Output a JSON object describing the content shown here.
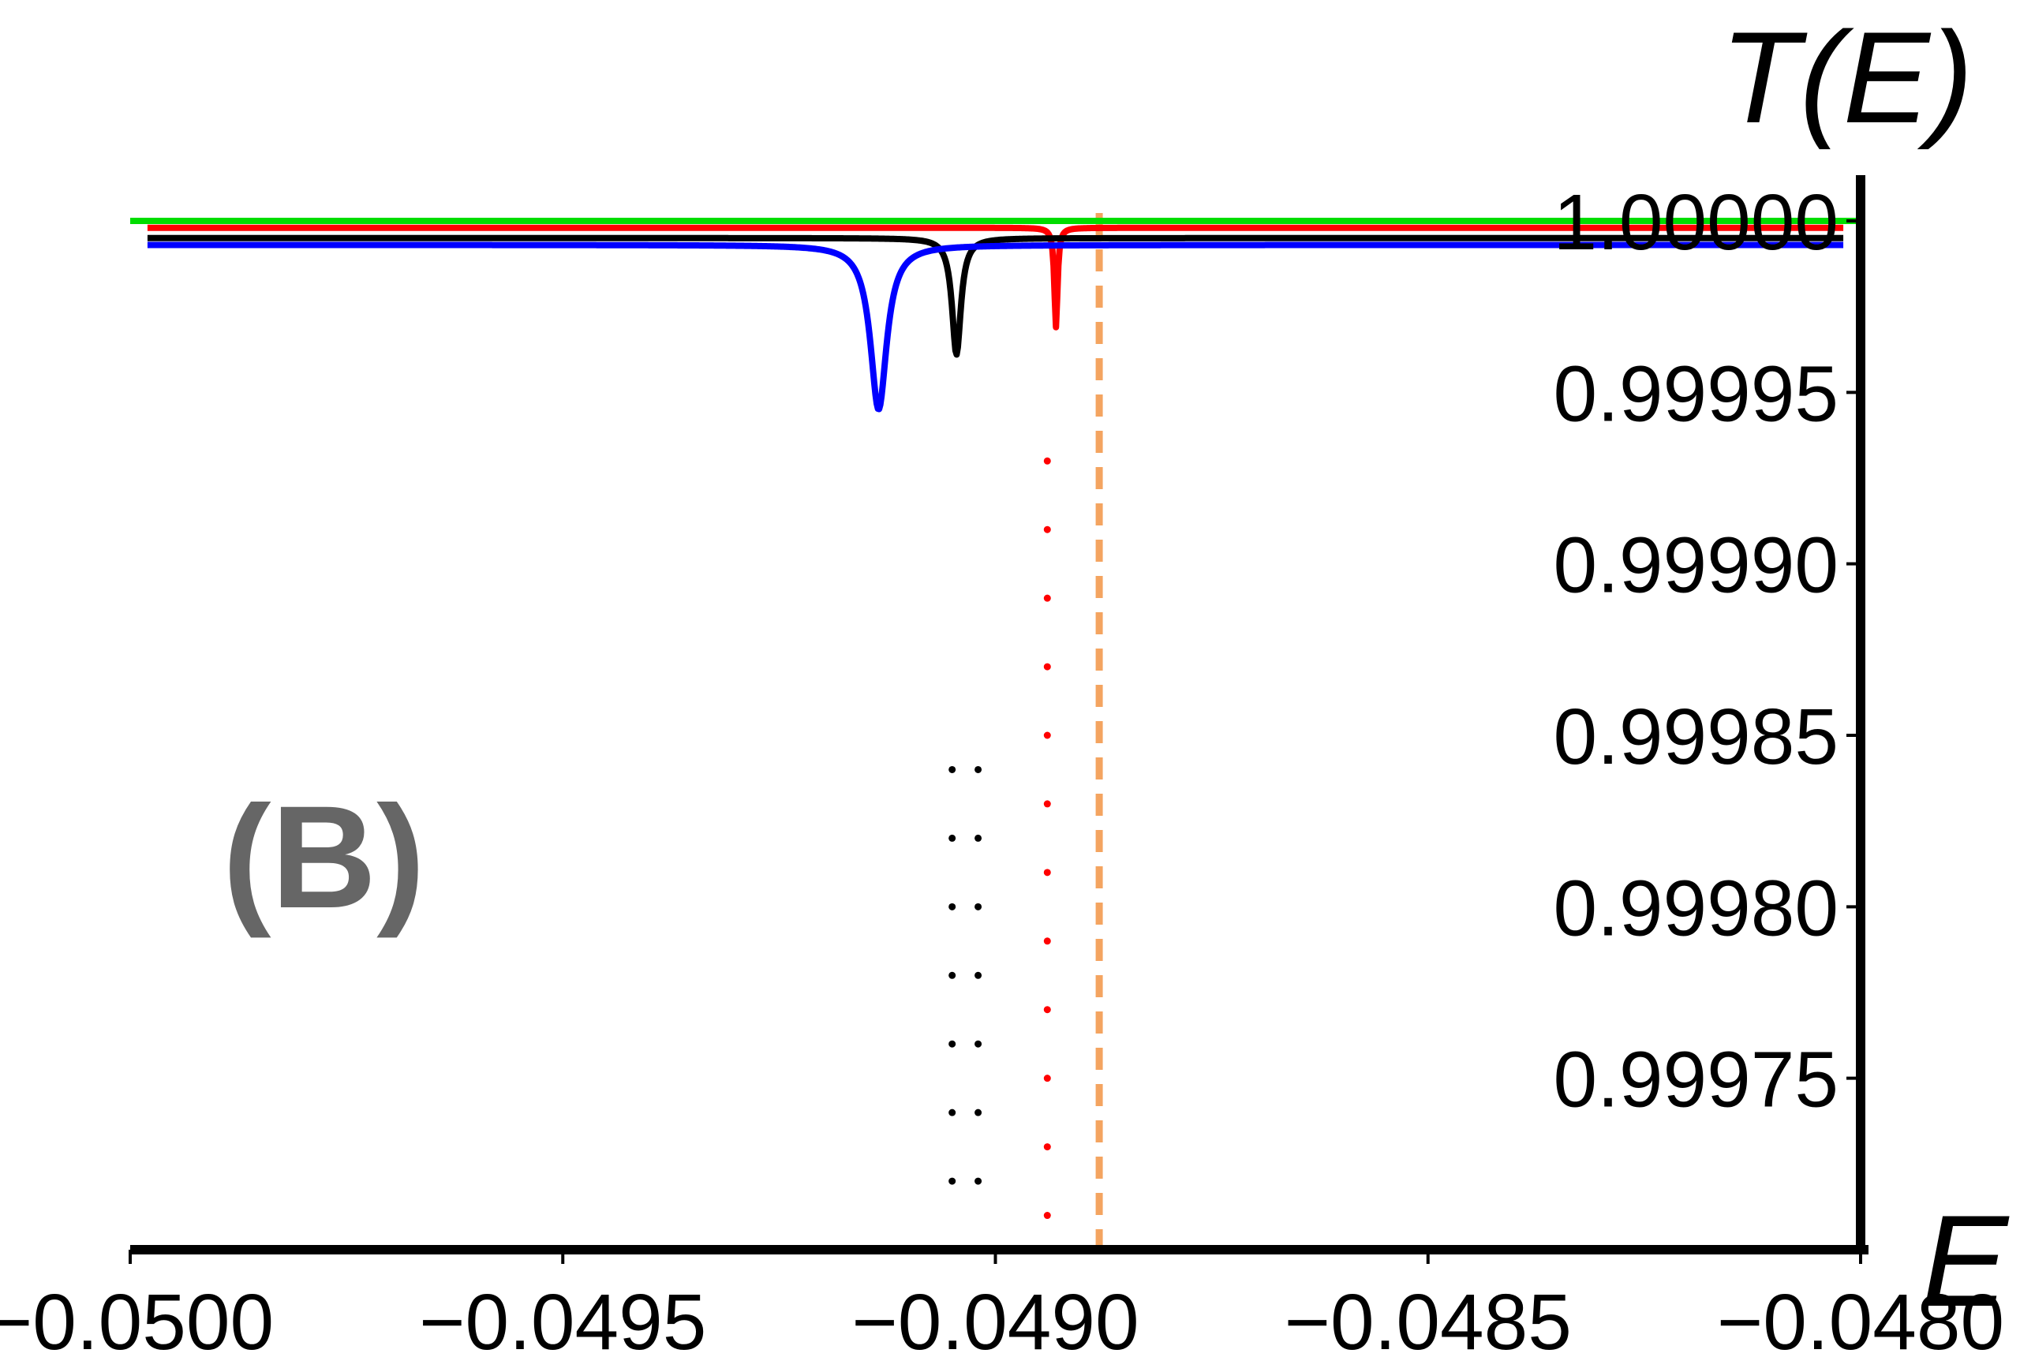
{
  "chart_data": {
    "type": "line",
    "panel_label": "(B)",
    "xlabel": "E",
    "ylabel": "T(E)",
    "xlim": [
      -0.05,
      -0.048
    ],
    "ylim": [
      0.9997,
      1.0
    ],
    "xticks": [
      "−0.0500",
      "−0.0495",
      "−0.0490",
      "−0.0485",
      "−0.0480"
    ],
    "xtick_values": [
      -0.05,
      -0.0495,
      -0.049,
      -0.0485,
      -0.048
    ],
    "yticks": [
      "0.99975",
      "0.99980",
      "0.99985",
      "0.99990",
      "0.99995",
      "1.00000"
    ],
    "ytick_values": [
      0.99975,
      0.9998,
      0.99985,
      0.9999,
      0.99995,
      1.0
    ],
    "reference_line": {
      "x": -0.04888,
      "color": "#f4a460",
      "style": "dashed"
    },
    "series": [
      {
        "color": "#00dd00",
        "style": "solid",
        "description_values": {
          "baseline": 1.0
        },
        "x": [
          -0.05,
          -0.048
        ],
        "y": [
          1.0,
          1.0
        ]
      },
      {
        "color": "#ff0000",
        "style": "solid",
        "center": -0.04893,
        "baseline": 0.999998,
        "depth": 2.9e-05,
        "width": 2.2e-06
      },
      {
        "color": "#000000",
        "style": "solid",
        "center": -0.049045,
        "baseline": 0.999995,
        "depth": 3.4e-05,
        "width": 6.2e-06
      },
      {
        "color": "#0000ff",
        "style": "solid",
        "center": -0.049135,
        "baseline": 0.999993,
        "depth": 4.8e-05,
        "width": 1.15e-05
      }
    ],
    "dip_points": [
      {
        "color": "#ff0000",
        "x": -0.04894,
        "y": [
          0.99993,
          0.99991,
          0.99989,
          0.99987,
          0.99985,
          0.99983,
          0.99981,
          0.99979,
          0.99977,
          0.99975,
          0.99973,
          0.99971
        ]
      },
      {
        "color": "#000000",
        "x": -0.04905,
        "y": [
          0.99984,
          0.99982,
          0.9998,
          0.99978,
          0.99976,
          0.99974,
          0.99972,
          0.9997
        ]
      },
      {
        "color": "#000000",
        "x": -0.04902,
        "y": [
          0.99984,
          0.99982,
          0.9998,
          0.99978,
          0.99976,
          0.99974,
          0.99972,
          0.9997
        ]
      }
    ]
  }
}
